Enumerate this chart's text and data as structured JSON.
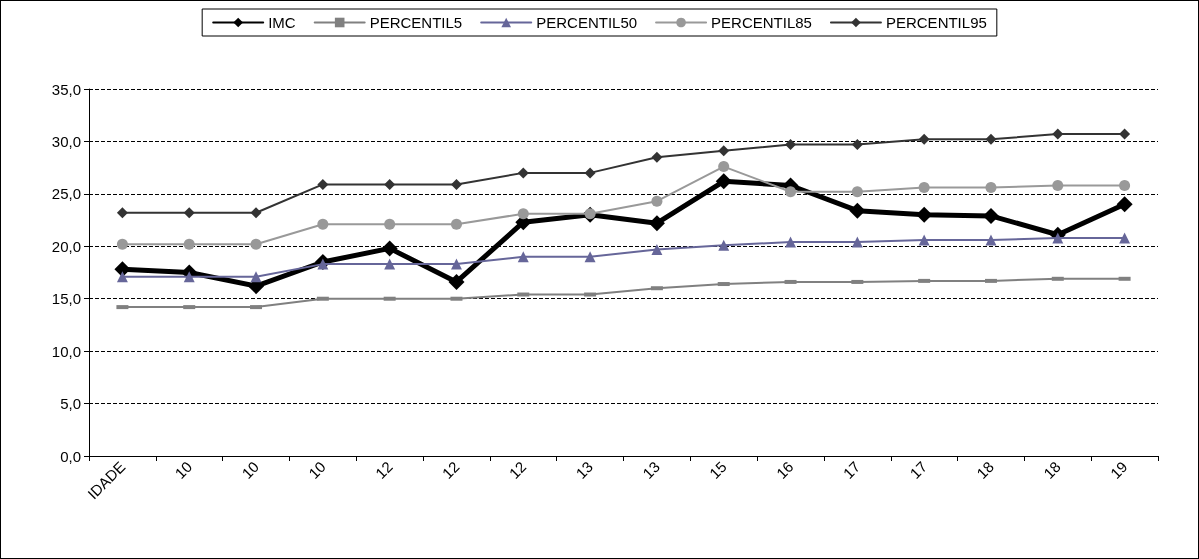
{
  "chart_data": {
    "type": "line",
    "categories": [
      "IDADE",
      "10",
      "10",
      "10",
      "12",
      "12",
      "12",
      "13",
      "13",
      "15",
      "16",
      "17",
      "17",
      "18",
      "18",
      "19"
    ],
    "series": [
      {
        "name": "IMC",
        "color": "#000000",
        "marker": "diamond",
        "values": [
          17.8,
          17.5,
          16.2,
          18.5,
          19.8,
          16.6,
          22.3,
          23.0,
          22.2,
          26.2,
          25.8,
          23.4,
          23.0,
          22.9,
          21.1,
          24.0
        ]
      },
      {
        "name": "PERCENTIL5",
        "color": "#808080",
        "marker": "square",
        "values": [
          14.2,
          14.2,
          14.2,
          15.0,
          15.0,
          15.0,
          15.4,
          15.4,
          16.0,
          16.4,
          16.6,
          16.6,
          16.7,
          16.7,
          16.9,
          16.9
        ]
      },
      {
        "name": "PERCENTIL50",
        "color": "#666699",
        "marker": "triangle",
        "values": [
          17.1,
          17.1,
          17.1,
          18.3,
          18.3,
          18.3,
          19.0,
          19.0,
          19.7,
          20.1,
          20.4,
          20.4,
          20.6,
          20.6,
          20.8,
          20.8
        ]
      },
      {
        "name": "PERCENTIL85",
        "color": "#999999",
        "marker": "circle",
        "values": [
          20.2,
          20.2,
          20.2,
          22.1,
          22.1,
          22.1,
          23.1,
          23.1,
          24.3,
          27.6,
          25.2,
          25.2,
          25.6,
          25.6,
          25.8,
          25.8
        ]
      },
      {
        "name": "PERCENTIL95",
        "color": "#333333",
        "marker": "diamond",
        "values": [
          23.2,
          23.2,
          23.2,
          25.9,
          25.9,
          25.9,
          27.0,
          27.0,
          28.5,
          29.1,
          29.7,
          29.7,
          30.2,
          30.2,
          30.7,
          30.7
        ]
      }
    ],
    "ylim": [
      0,
      35
    ],
    "yticks": [
      {
        "value": 0,
        "label": "0,0"
      },
      {
        "value": 5,
        "label": "5,0"
      },
      {
        "value": 10,
        "label": "10,0"
      },
      {
        "value": 15,
        "label": "15,0"
      },
      {
        "value": 20,
        "label": "20,0"
      },
      {
        "value": 25,
        "label": "25,0"
      },
      {
        "value": 30,
        "label": "30,0"
      },
      {
        "value": 35,
        "label": "35,0"
      }
    ],
    "grid": "y",
    "legend": "top",
    "line_style": "solid"
  }
}
